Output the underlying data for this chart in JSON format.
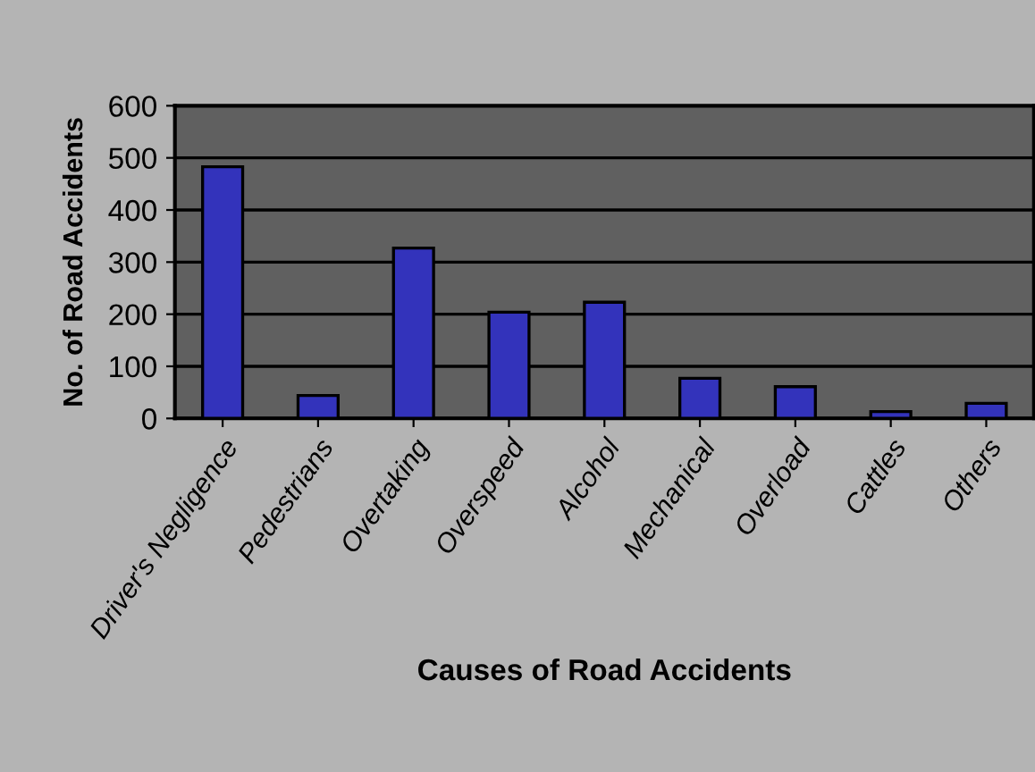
{
  "chart_data": {
    "type": "bar",
    "xlabel": "Causes of Road Accidents",
    "ylabel": "No. of Road Accidents",
    "categories": [
      "Driver's Negligence",
      "Pedestrians",
      "Overtaking",
      "Overspeed",
      "Alcohol",
      "Mechanical",
      "Overload",
      "Cattles",
      "Others"
    ],
    "values": [
      483,
      44,
      327,
      204,
      223,
      77,
      61,
      13,
      29
    ],
    "color": "#3333bb",
    "ylim": [
      0,
      600
    ],
    "yticks": [
      0,
      100,
      200,
      300,
      400,
      500,
      600
    ],
    "grid": "y",
    "legend": false
  }
}
